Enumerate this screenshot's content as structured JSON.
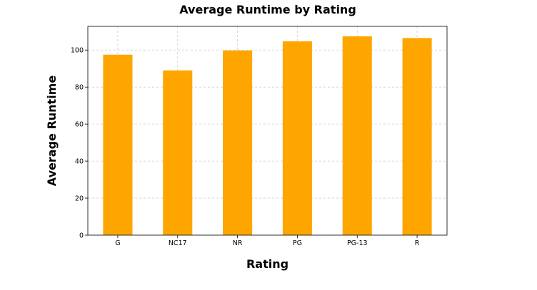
{
  "chart_data": {
    "type": "bar",
    "title": "Average Runtime by Rating",
    "xlabel": "Rating",
    "ylabel": "Average Runtime",
    "categories": [
      "G",
      "NC17",
      "NR",
      "PG",
      "PG-13",
      "R"
    ],
    "values": [
      97.5,
      89.0,
      99.8,
      104.7,
      107.4,
      106.5
    ],
    "ylim": [
      0,
      112.8
    ],
    "yticks": [
      0,
      20,
      40,
      60,
      80,
      100
    ],
    "grid": true,
    "bar_color": "#FFA500"
  }
}
